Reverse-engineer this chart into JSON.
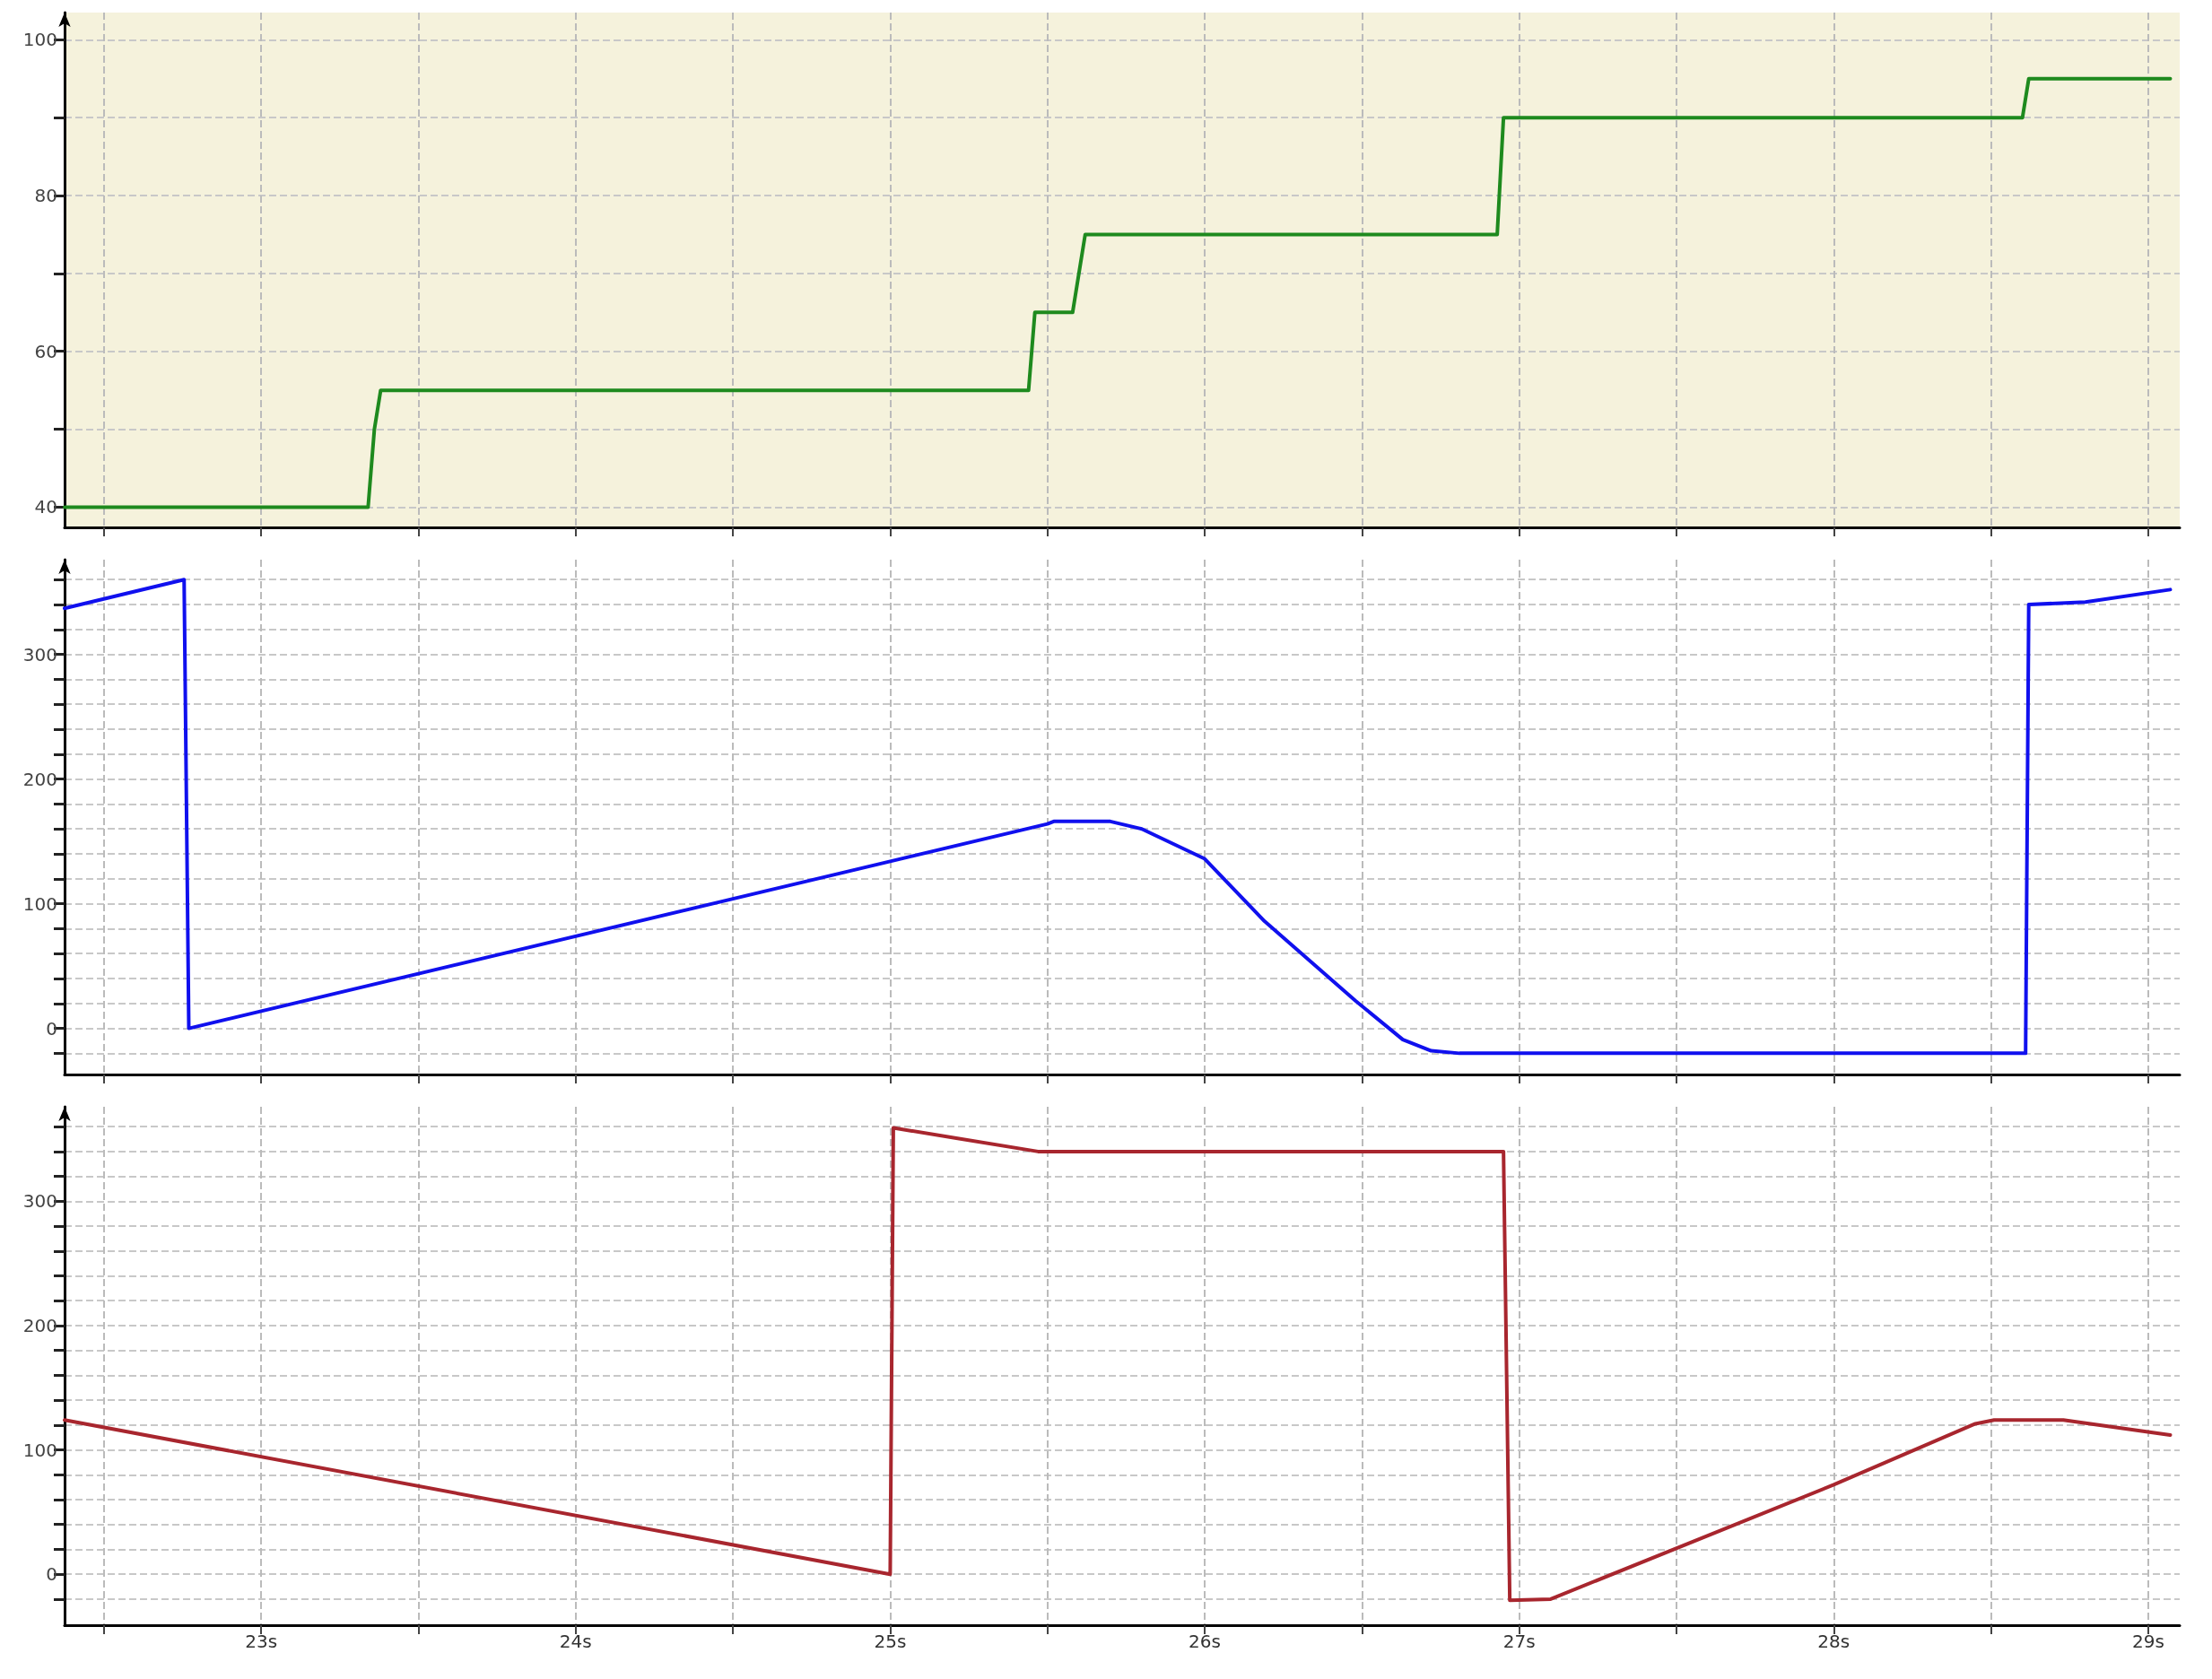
{
  "chart_data": [
    {
      "type": "line",
      "xlim": [
        22.375,
        29.1
      ],
      "ylim": [
        37.4,
        103.5
      ],
      "tick_labels": "y",
      "grid": true,
      "xticks": [
        {
          "value": 22.5,
          "label": null
        },
        {
          "value": 23,
          "label": null
        },
        {
          "value": 23.5,
          "label": null
        },
        {
          "value": 24,
          "label": null
        },
        {
          "value": 24.5,
          "label": null
        },
        {
          "value": 25,
          "label": null
        },
        {
          "value": 25.5,
          "label": null
        },
        {
          "value": 26,
          "label": null
        },
        {
          "value": 26.5,
          "label": null
        },
        {
          "value": 27,
          "label": null
        },
        {
          "value": 27.5,
          "label": null
        },
        {
          "value": 28,
          "label": null
        },
        {
          "value": 28.5,
          "label": null
        },
        {
          "value": 29,
          "label": null
        }
      ],
      "yticks": [
        40,
        {
          "value": 50,
          "label": null
        },
        60,
        {
          "value": 70,
          "label": null
        },
        80,
        {
          "value": 90,
          "label": null
        },
        100
      ],
      "series": [
        {
          "color": "#1e8a1e",
          "x": [
            22.375,
            23.34,
            23.36,
            23.38,
            25.44,
            25.45,
            25.46,
            25.58,
            25.6,
            25.62,
            26.93,
            26.95,
            28.6,
            28.62,
            29.07
          ],
          "values": [
            40,
            40,
            50,
            55,
            55,
            60,
            65,
            65,
            70,
            75,
            75,
            90,
            90,
            95,
            95
          ]
        }
      ]
    },
    {
      "type": "line",
      "xlim": [
        22.375,
        29.1
      ],
      "ylim": [
        -37,
        376
      ],
      "tick_labels": "y",
      "grid": true,
      "xticks": [
        {
          "value": 22.5,
          "label": null
        },
        {
          "value": 23,
          "label": null
        },
        {
          "value": 23.5,
          "label": null
        },
        {
          "value": 24,
          "label": null
        },
        {
          "value": 24.5,
          "label": null
        },
        {
          "value": 25,
          "label": null
        },
        {
          "value": 25.5,
          "label": null
        },
        {
          "value": 26,
          "label": null
        },
        {
          "value": 26.5,
          "label": null
        },
        {
          "value": 27,
          "label": null
        },
        {
          "value": 27.5,
          "label": null
        },
        {
          "value": 28,
          "label": null
        },
        {
          "value": 28.5,
          "label": null
        },
        {
          "value": 29,
          "label": null
        }
      ],
      "yticks": [
        {
          "value": -20,
          "label": null
        },
        0,
        {
          "value": 20,
          "label": null
        },
        {
          "value": 40,
          "label": null
        },
        {
          "value": 60,
          "label": null
        },
        {
          "value": 80,
          "label": null
        },
        100,
        {
          "value": 120,
          "label": null
        },
        {
          "value": 140,
          "label": null
        },
        {
          "value": 160,
          "label": null
        },
        {
          "value": 180,
          "label": null
        },
        200,
        {
          "value": 220,
          "label": null
        },
        {
          "value": 240,
          "label": null
        },
        {
          "value": 260,
          "label": null
        },
        {
          "value": 280,
          "label": null
        },
        300,
        {
          "value": 320,
          "label": null
        },
        {
          "value": 340,
          "label": null
        },
        {
          "value": 360,
          "label": null
        }
      ],
      "series": [
        {
          "color": "#1010ee",
          "x": [
            22.375,
            22.755,
            22.77,
            25.0,
            25.5,
            25.52,
            25.7,
            25.8,
            26.0,
            26.19,
            26.48,
            26.63,
            26.72,
            26.81,
            28.61,
            28.62,
            28.8,
            29.07
          ],
          "values": [
            337,
            360,
            0,
            134,
            164,
            166,
            166,
            160,
            136,
            86,
            22,
            -9,
            -18,
            -20,
            -20,
            340,
            342,
            352
          ]
        }
      ]
    },
    {
      "type": "line",
      "xlim": [
        22.375,
        29.1
      ],
      "ylim": [
        -41,
        376
      ],
      "grid": true,
      "xticks": [
        {
          "value": 22.5,
          "label": null
        },
        {
          "value": 23,
          "label": "23s"
        },
        {
          "value": 23.5,
          "label": null
        },
        {
          "value": 24,
          "label": "24s"
        },
        {
          "value": 24.5,
          "label": null
        },
        {
          "value": 25,
          "label": "25s"
        },
        {
          "value": 25.5,
          "label": null
        },
        {
          "value": 26,
          "label": "26s"
        },
        {
          "value": 26.5,
          "label": null
        },
        {
          "value": 27,
          "label": "27s"
        },
        {
          "value": 27.5,
          "label": null
        },
        {
          "value": 28,
          "label": "28s"
        },
        {
          "value": 28.5,
          "label": null
        },
        {
          "value": 29,
          "label": "29s"
        }
      ],
      "yticks": [
        {
          "value": -20,
          "label": null
        },
        0,
        {
          "value": 20,
          "label": null
        },
        {
          "value": 40,
          "label": null
        },
        {
          "value": 60,
          "label": null
        },
        {
          "value": 80,
          "label": null
        },
        100,
        {
          "value": 120,
          "label": null
        },
        {
          "value": 140,
          "label": null
        },
        {
          "value": 160,
          "label": null
        },
        {
          "value": 180,
          "label": null
        },
        200,
        {
          "value": 220,
          "label": null
        },
        {
          "value": 240,
          "label": null
        },
        {
          "value": 260,
          "label": null
        },
        {
          "value": 280,
          "label": null
        },
        300,
        {
          "value": 320,
          "label": null
        },
        {
          "value": 340,
          "label": null
        },
        {
          "value": 360,
          "label": null
        }
      ],
      "series": [
        {
          "color": "#a8262e",
          "x": [
            22.375,
            25.0,
            25.01,
            25.47,
            26.95,
            26.97,
            27.1,
            28.0,
            28.45,
            28.51,
            28.73,
            29.07
          ],
          "values": [
            124,
            0,
            359,
            340,
            340,
            -21,
            -20,
            72,
            121,
            124,
            124,
            112
          ]
        }
      ]
    }
  ]
}
